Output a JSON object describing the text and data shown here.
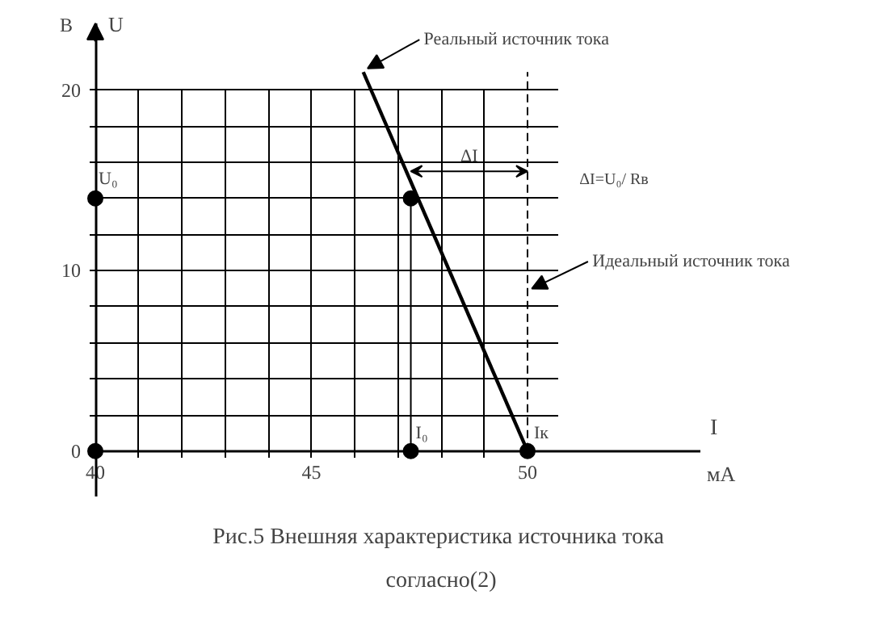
{
  "chart_data": {
    "type": "line",
    "title": "Рис.5  Внешняя характеристика источника тока согласно(2)",
    "xlabel": "I",
    "ylabel": "U",
    "xlim": [
      40,
      54
    ],
    "ylim": [
      -2.5,
      23.7
    ],
    "xticks": [
      40,
      {
        "value": 41,
        "label": null
      },
      {
        "value": 42,
        "label": null
      },
      {
        "value": 43,
        "label": null
      },
      {
        "value": 44,
        "label": null
      },
      45,
      {
        "value": 46,
        "label": null
      },
      {
        "value": 47,
        "label": null
      },
      {
        "value": 48,
        "label": null
      },
      {
        "value": 49,
        "label": null
      },
      50
    ],
    "yticks": [
      0,
      {
        "value": 2,
        "label": null
      },
      {
        "value": 4,
        "label": null
      },
      {
        "value": 6,
        "label": null
      },
      {
        "value": 8,
        "label": null
      },
      10,
      {
        "value": 12,
        "label": null
      },
      {
        "value": 14,
        "label": null
      },
      {
        "value": 16,
        "label": null
      },
      {
        "value": 18,
        "label": null
      },
      20
    ],
    "grid": true,
    "series": [
      {
        "color": "#000000",
        "line_style": "solid",
        "x": [
          46.2,
          50
        ],
        "values": [
          21,
          0
        ]
      },
      {
        "color": "#000000",
        "line_style": "dashed",
        "x": [
          50,
          50
        ],
        "values": [
          0,
          21
        ]
      },
      {
        "color": "#000000",
        "line_style": "solid",
        "x": [
          47.3,
          47.3
        ],
        "values": [
          0,
          14
        ]
      },
      {
        "type": "scatter",
        "color": "#000000",
        "marker": "circle",
        "x": [
          40,
          40,
          47.3,
          47.3,
          50
        ],
        "values": [
          14,
          0,
          14,
          0,
          0
        ]
      }
    ],
    "annotations": [
      {
        "text": "Реальный источник тока",
        "x": 46.2,
        "y": 21
      },
      {
        "text": "Идеальный источник тока",
        "x": 50,
        "y": 9
      },
      "ΔI",
      "ΔI=U₀/ Rв",
      {
        "text": "U₀",
        "x": 40,
        "y": 14
      },
      {
        "text": "I₀",
        "x": 47.3,
        "y": 0
      },
      {
        "text": "Iк",
        "x": 50,
        "y": 0
      },
      "В",
      "мА"
    ]
  }
}
